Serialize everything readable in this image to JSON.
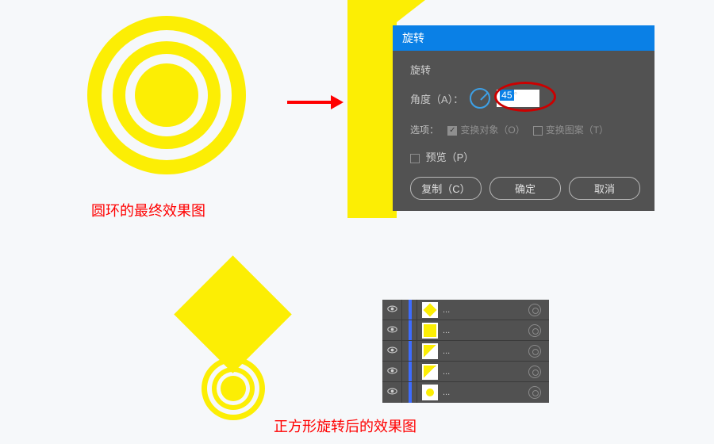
{
  "colors": {
    "yellow": "#fcee04",
    "bg": "#f6f8fa",
    "red_annot": "#ff0000",
    "mark_red": "#cc0000",
    "dlg_bg": "#525252",
    "dlg_titlebar": "#0a80e6",
    "panel_bg": "#515151",
    "blue_stripe": "#3d6cff"
  },
  "captions": {
    "rings": "圆环的最终效果图",
    "composite": "正方形旋转后的效果图"
  },
  "dialog": {
    "title": "旋转",
    "section": "旋转",
    "angle_label": "角度（A）：",
    "angle_value": "45",
    "angle_unit": "°",
    "options_label": "选项：",
    "opt_transform_objects": "变换对象（O）",
    "opt_transform_patterns": "变换图案（T）",
    "opt_obj_checked": true,
    "opt_pat_checked": false,
    "preview_label": "预览（P）",
    "preview_checked": false,
    "buttons": {
      "copy": "复制（C）",
      "ok": "确定",
      "cancel": "取消"
    }
  },
  "layers": {
    "label_suffix": "...",
    "rows": [
      {
        "visible": true,
        "thumb": "diamond",
        "selected": false
      },
      {
        "visible": true,
        "thumb": "sq",
        "selected": false
      },
      {
        "visible": true,
        "thumb": "half",
        "selected": false
      },
      {
        "visible": true,
        "thumb": "half",
        "selected": false
      },
      {
        "visible": true,
        "thumb": "dot",
        "selected": false
      }
    ]
  }
}
